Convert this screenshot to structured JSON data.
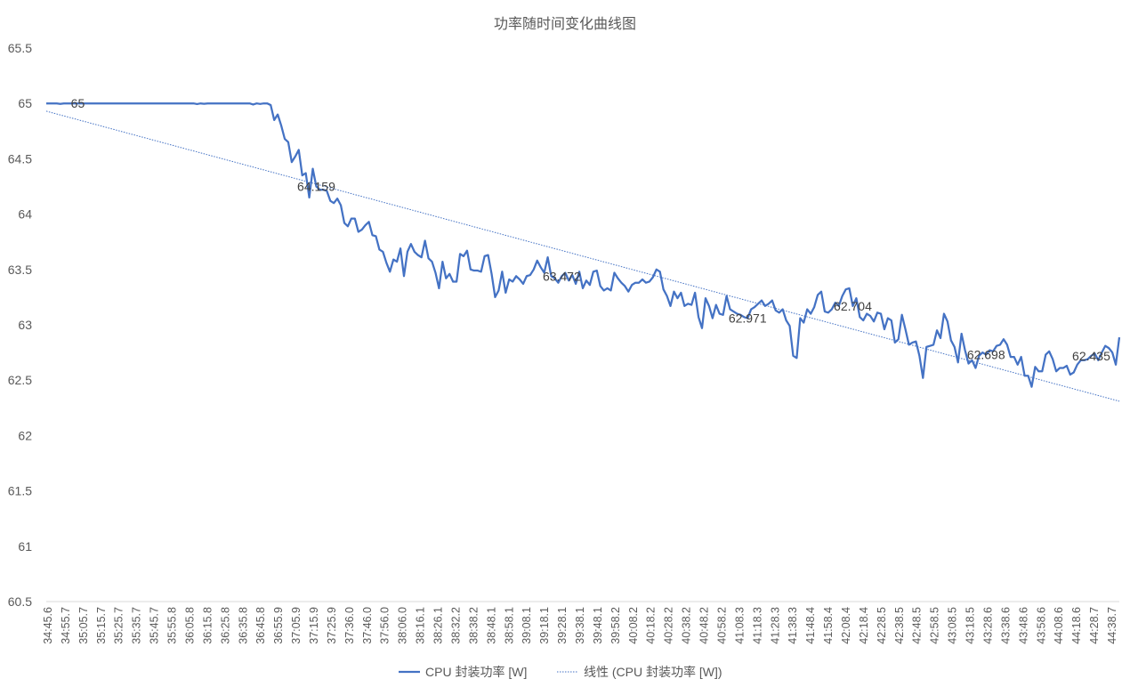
{
  "chart_data": {
    "type": "line",
    "title": "功率随时间变化曲线图",
    "xlabel": "",
    "ylabel": "",
    "ylim": [
      60.5,
      65.5
    ],
    "yticks": [
      60.5,
      61,
      61.5,
      62,
      62.5,
      63,
      63.5,
      64,
      64.5,
      65,
      65.5
    ],
    "grid": false,
    "legend_position": "bottom",
    "x_tick_labels": [
      "34:45.6",
      "34:55.7",
      "35:05.7",
      "35:15.7",
      "35:25.7",
      "35:35.7",
      "35:45.7",
      "35:55.8",
      "36:05.8",
      "36:15.8",
      "36:25.8",
      "36:35.8",
      "36:45.8",
      "36:55.9",
      "37:05.9",
      "37:15.9",
      "37:25.9",
      "37:36.0",
      "37:46.0",
      "37:56.0",
      "38:06.0",
      "38:16.1",
      "38:26.1",
      "38:32.2",
      "38:38.2",
      "38:48.1",
      "38:58.1",
      "39:08.1",
      "39:18.1",
      "39:28.1",
      "39:38.1",
      "39:48.1",
      "39:58.2",
      "40:08.2",
      "40:18.2",
      "40:28.2",
      "40:38.2",
      "40:48.2",
      "40:58.2",
      "41:08.3",
      "41:18.3",
      "41:28.3",
      "41:38.3",
      "41:48.4",
      "41:58.4",
      "42:08.4",
      "42:18.4",
      "42:28.5",
      "42:38.5",
      "42:48.5",
      "42:58.5",
      "43:08.5",
      "43:18.5",
      "43:28.6",
      "43:38.6",
      "43:48.6",
      "43:58.6",
      "44:08.6",
      "44:18.6",
      "44:28.7",
      "44:38.7"
    ],
    "series": [
      {
        "name": "CPU 封装功率 [W]",
        "color": "#4472C4",
        "style": "solid",
        "values": [
          65,
          65,
          65,
          65,
          64.996,
          65,
          65,
          65,
          65,
          65,
          65,
          65,
          65,
          65,
          65,
          65,
          65,
          65,
          65,
          65,
          65,
          65,
          65,
          65,
          65,
          65,
          65,
          65,
          65,
          65,
          65,
          65,
          65,
          65,
          65,
          65,
          65,
          65,
          65,
          65,
          65,
          65,
          65,
          64.994,
          65,
          64.997,
          65,
          65,
          65,
          65,
          65,
          65,
          65,
          65,
          65,
          65,
          65,
          65,
          65,
          64.99,
          65,
          64.995,
          65,
          65,
          64.985,
          64.85,
          64.9,
          64.8,
          64.68,
          64.65,
          64.47,
          64.52,
          64.58,
          64.35,
          64.37,
          64.15,
          64.41,
          64.25,
          64.22,
          64.22,
          64.21,
          64.12,
          64.1,
          64.14,
          64.08,
          63.92,
          63.89,
          63.96,
          63.96,
          63.84,
          63.86,
          63.9,
          63.93,
          63.81,
          63.8,
          63.68,
          63.66,
          63.56,
          63.48,
          63.59,
          63.57,
          63.69,
          63.44,
          63.66,
          63.73,
          63.66,
          63.63,
          63.61,
          63.76,
          63.6,
          63.57,
          63.47,
          63.33,
          63.57,
          63.42,
          63.46,
          63.39,
          63.39,
          63.64,
          63.62,
          63.67,
          63.5,
          63.49,
          63.49,
          63.48,
          63.62,
          63.63,
          63.46,
          63.25,
          63.31,
          63.48,
          63.29,
          63.41,
          63.39,
          63.44,
          63.41,
          63.37,
          63.44,
          63.45,
          63.5,
          63.58,
          63.52,
          63.47,
          63.61,
          63.44,
          63.42,
          63.38,
          63.44,
          63.47,
          63.4,
          63.45,
          63.37,
          63.48,
          63.33,
          63.4,
          63.36,
          63.48,
          63.49,
          63.35,
          63.31,
          63.33,
          63.31,
          63.47,
          63.42,
          63.38,
          63.35,
          63.3,
          63.36,
          63.38,
          63.38,
          63.41,
          63.38,
          63.39,
          63.43,
          63.5,
          63.48,
          63.32,
          63.26,
          63.17,
          63.3,
          63.24,
          63.29,
          63.17,
          63.19,
          63.18,
          63.29,
          63.07,
          62.97,
          63.24,
          63.17,
          63.06,
          63.18,
          63.1,
          63.09,
          63.26,
          63.14,
          63.12,
          63.1,
          63.09,
          63.07,
          63.06,
          63.14,
          63.16,
          63.19,
          63.22,
          63.17,
          63.19,
          63.22,
          63.13,
          63.11,
          63.14,
          63.04,
          62.99,
          62.72,
          62.7,
          63.06,
          63.02,
          63.14,
          63.1,
          63.16,
          63.27,
          63.3,
          63.12,
          63.11,
          63.14,
          63.2,
          63.17,
          63.26,
          63.32,
          63.33,
          63.17,
          63.24,
          63.07,
          63.04,
          63.1,
          63.08,
          63.03,
          63.11,
          63.1,
          62.96,
          63.06,
          63.04,
          62.84,
          62.87,
          63.09,
          62.96,
          62.82,
          62.84,
          62.85,
          62.72,
          62.52,
          62.8,
          62.81,
          62.82,
          62.95,
          62.88,
          63.1,
          63.03,
          62.86,
          62.8,
          62.66,
          62.92,
          62.77,
          62.65,
          62.68,
          62.61,
          62.72,
          62.75,
          62.73,
          62.77,
          62.76,
          62.81,
          62.82,
          62.87,
          62.82,
          62.71,
          62.71,
          62.64,
          62.71,
          62.54,
          62.54,
          62.44,
          62.62,
          62.58,
          62.58,
          62.73,
          62.76,
          62.69,
          62.58,
          62.61,
          62.61,
          62.63,
          62.55,
          62.57,
          62.64,
          62.68,
          62.68,
          62.69,
          62.72,
          62.74,
          62.68,
          62.75,
          62.81,
          62.79,
          62.75,
          62.64,
          62.887
        ]
      },
      {
        "name": "线性 (CPU 封装功率 [W])",
        "color": "#4472C4",
        "style": "dotted",
        "trend_start": 64.93,
        "trend_end": 62.31
      }
    ],
    "data_labels": [
      {
        "index": 9,
        "value": "65"
      },
      {
        "index": 77,
        "value": "64.159"
      },
      {
        "index": 147,
        "value": "63.472"
      },
      {
        "index": 200,
        "value": "62.971"
      },
      {
        "index": 230,
        "value": "62.704"
      },
      {
        "index": 268,
        "value": "62.698"
      },
      {
        "index": 298,
        "value": "62.435"
      },
      {
        "index": 318,
        "value": "62.887"
      }
    ]
  }
}
